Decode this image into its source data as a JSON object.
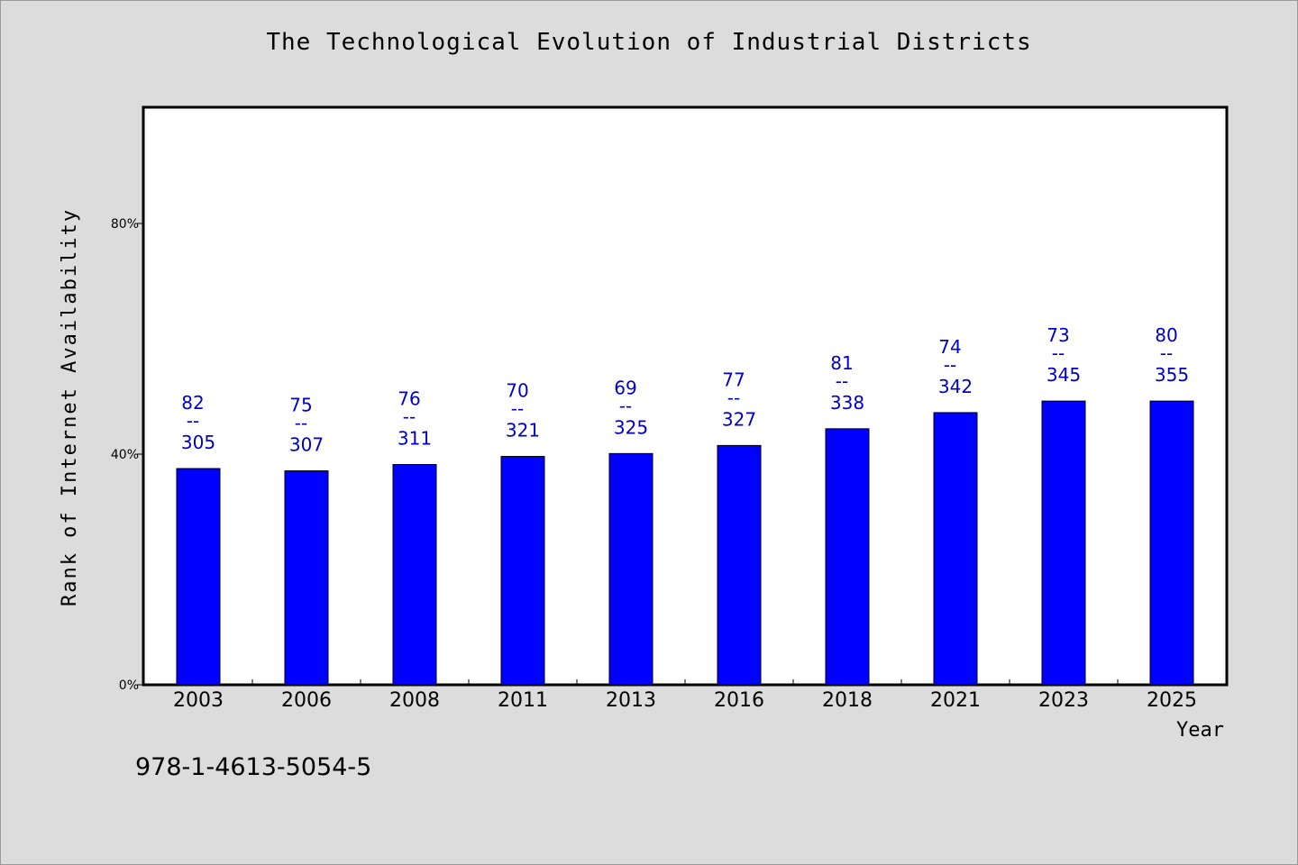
{
  "chart_data": {
    "type": "bar",
    "title": "The Technological Evolution of Industrial Districts",
    "xlabel": "Year",
    "ylabel": "Rank of Internet Availability",
    "ylim": [
      0,
      100
    ],
    "yticks": [
      {
        "value": 0,
        "label": "0%"
      },
      {
        "value": 40,
        "label": "40%"
      },
      {
        "value": 80,
        "label": "80%"
      }
    ],
    "categories": [
      "2003",
      "2006",
      "2008",
      "2011",
      "2013",
      "2016",
      "2018",
      "2021",
      "2023",
      "2025"
    ],
    "values": [
      37.5,
      37.1,
      38.2,
      39.6,
      40.1,
      41.5,
      44.4,
      47.2,
      49.2,
      49.2
    ],
    "annotations": [
      {
        "top": "82",
        "sep": "--",
        "bottom": "305"
      },
      {
        "top": "75",
        "sep": "--",
        "bottom": "307"
      },
      {
        "top": "76",
        "sep": "--",
        "bottom": "311"
      },
      {
        "top": "70",
        "sep": "--",
        "bottom": "321"
      },
      {
        "top": "69",
        "sep": "--",
        "bottom": "325"
      },
      {
        "top": "77",
        "sep": "--",
        "bottom": "327"
      },
      {
        "top": "81",
        "sep": "--",
        "bottom": "338"
      },
      {
        "top": "74",
        "sep": "--",
        "bottom": "342"
      },
      {
        "top": "73",
        "sep": "--",
        "bottom": "345"
      },
      {
        "top": "80",
        "sep": "--",
        "bottom": "355"
      }
    ],
    "grid": false,
    "bar_color": "#0000ff",
    "label_color": "#0000cc"
  },
  "footer": {
    "code": "978-1-4613-5054-5"
  }
}
